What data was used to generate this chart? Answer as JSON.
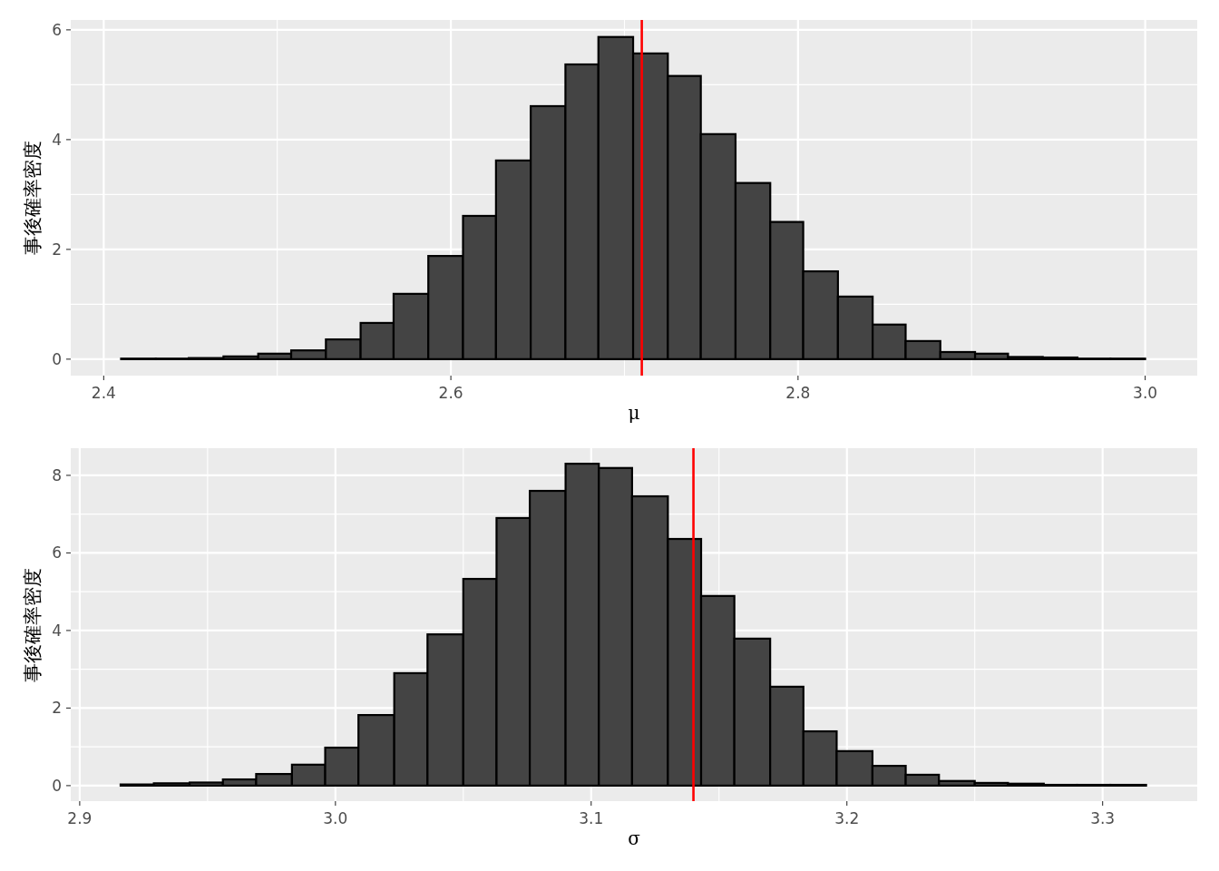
{
  "chart_data": [
    {
      "type": "histogram",
      "xlabel": "μ",
      "ylabel": "事後確率密度",
      "color": "#444444",
      "grid": true,
      "bins": [
        2.41,
        2.43,
        2.449,
        2.469,
        2.489,
        2.508,
        2.528,
        2.548,
        2.567,
        2.587,
        2.607,
        2.626,
        2.646,
        2.666,
        2.685,
        2.705,
        2.725,
        2.744,
        2.764,
        2.784,
        2.803,
        2.823,
        2.843,
        2.862,
        2.882,
        2.902,
        2.921,
        2.941,
        2.961,
        2.98,
        3.0
      ],
      "values": [
        0.01,
        0.01,
        0.02,
        0.05,
        0.1,
        0.16,
        0.36,
        0.66,
        1.19,
        1.88,
        2.61,
        3.62,
        4.61,
        5.37,
        5.87,
        5.57,
        5.16,
        4.1,
        3.21,
        2.5,
        1.6,
        1.14,
        0.63,
        0.33,
        0.13,
        0.1,
        0.04,
        0.03,
        0.01,
        0.01
      ],
      "ref_lines": [
        {
          "axis": "x",
          "value": 2.71,
          "color": "#ff0000"
        }
      ],
      "xlim": [
        2.381,
        3.03
      ],
      "ylim": [
        -0.3,
        6.18
      ],
      "xticks": [
        2.4,
        {
          "value": 2.5,
          "label": null
        },
        2.6,
        {
          "value": 2.7,
          "label": null
        },
        2.8,
        {
          "value": 2.9,
          "label": null
        },
        {
          "value": 3.0,
          "label": "3.0"
        }
      ],
      "yticks": [
        0,
        {
          "value": 1,
          "label": null
        },
        2,
        {
          "value": 3,
          "label": null
        },
        4,
        {
          "value": 5,
          "label": null
        },
        6
      ]
    },
    {
      "type": "histogram",
      "xlabel": "σ",
      "ylabel": "事後確率密度",
      "color": "#444444",
      "grid": true,
      "bins": [
        2.916,
        2.929,
        2.943,
        2.956,
        2.969,
        2.983,
        2.996,
        3.009,
        3.023,
        3.036,
        3.05,
        3.063,
        3.076,
        3.09,
        3.103,
        3.116,
        3.13,
        3.143,
        3.156,
        3.17,
        3.183,
        3.196,
        3.21,
        3.223,
        3.236,
        3.25,
        3.263,
        3.277,
        3.29,
        3.303,
        3.317
      ],
      "values": [
        0.03,
        0.06,
        0.08,
        0.16,
        0.3,
        0.54,
        0.98,
        1.82,
        2.9,
        3.9,
        5.33,
        6.9,
        7.6,
        8.3,
        8.19,
        7.46,
        6.36,
        4.89,
        3.79,
        2.55,
        1.4,
        0.89,
        0.51,
        0.28,
        0.12,
        0.07,
        0.05,
        0.02,
        0.02,
        0.02
      ],
      "ref_lines": [
        {
          "axis": "x",
          "value": 3.14,
          "color": "#ff0000"
        }
      ],
      "xlim": [
        2.8965,
        3.337
      ],
      "ylim": [
        -0.4,
        8.7
      ],
      "xticks": [
        2.9,
        {
          "value": 2.95,
          "label": null
        },
        {
          "value": 3.0,
          "label": "3.0"
        },
        {
          "value": 3.05,
          "label": null
        },
        3.1,
        {
          "value": 3.15,
          "label": null
        },
        3.2,
        {
          "value": 3.25,
          "label": null
        },
        3.3
      ],
      "yticks": [
        0,
        {
          "value": 1,
          "label": null
        },
        2,
        {
          "value": 3,
          "label": null
        },
        4,
        {
          "value": 5,
          "label": null
        },
        6,
        {
          "value": 7,
          "label": null
        },
        8
      ]
    }
  ]
}
